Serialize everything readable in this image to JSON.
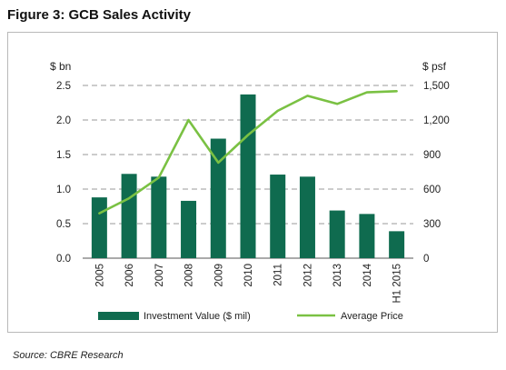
{
  "figure": {
    "title": "Figure 3: GCB Sales Activity",
    "source": "Source: CBRE Research"
  },
  "chart_data": {
    "type": "bar",
    "categories": [
      "2005",
      "2006",
      "2007",
      "2008",
      "2009",
      "2010",
      "2011",
      "2012",
      "2013",
      "2014",
      "H1 2015"
    ],
    "left_axis": {
      "label": "$ bn",
      "ylim": [
        0,
        2.5
      ],
      "ticks": [
        "0.0",
        "0.5",
        "1.0",
        "1.5",
        "2.0",
        "2.5"
      ]
    },
    "right_axis": {
      "label": "$ psf",
      "ylim": [
        0,
        1500
      ],
      "ticks": [
        "0",
        "300",
        "600",
        "900",
        "1,200",
        "1,500"
      ]
    },
    "series": [
      {
        "name": "Investment Value ($ mil)",
        "type": "bar",
        "axis": "left",
        "color": "#0f6b4f",
        "values": [
          0.88,
          1.22,
          1.18,
          0.83,
          1.73,
          2.37,
          1.21,
          1.18,
          0.69,
          0.64,
          0.39
        ]
      },
      {
        "name": "Average Price",
        "type": "line",
        "axis": "right",
        "color": "#7ac143",
        "values": [
          390,
          520,
          700,
          1200,
          830,
          1070,
          1280,
          1410,
          1340,
          1440,
          1450
        ]
      }
    ],
    "grid": true,
    "legend_placement": "bottom"
  }
}
